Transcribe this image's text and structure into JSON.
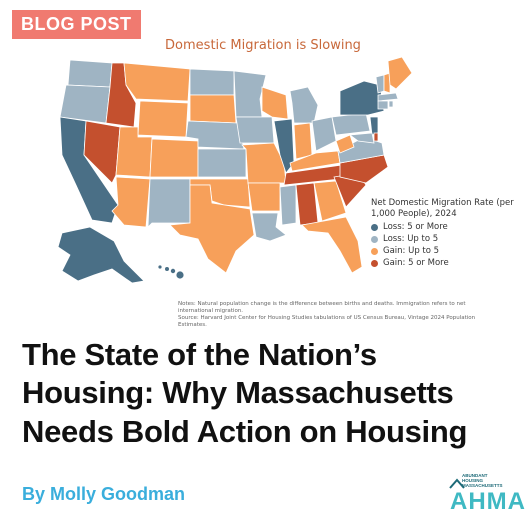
{
  "badge": "BLOG POST",
  "map": {
    "title": "Domestic Migration is Slowing",
    "colors": {
      "loss_5_or_more": "#4a6f86",
      "loss_up_to_5": "#9fb4c3",
      "gain_up_to_5": "#f7a05a",
      "gain_5_or_more": "#c4502e"
    },
    "legend": {
      "title": "Net Domestic Migration Rate (per 1,000 People), 2024",
      "items": [
        {
          "label": "Loss: 5 or More",
          "color": "#4a6f86"
        },
        {
          "label": "Loss: Up to 5",
          "color": "#9fb4c3"
        },
        {
          "label": "Gain: Up to 5",
          "color": "#f7a05a"
        },
        {
          "label": "Gain: 5 or More",
          "color": "#c4502e"
        }
      ]
    },
    "notes": [
      "Notes: Natural population change is the difference between births and deaths. Immigration refers to net international migration.",
      "Source: Harvard Joint Center for Housing Studies tabulations of US Census Bureau, Vintage 2024 Population Estimates."
    ]
  },
  "headline": [
    "The State of the Nation’s",
    "Housing: Why Massachusetts",
    "Needs Bold Action on Housing"
  ],
  "byline": "By Molly Goodman",
  "logo": {
    "small_lines": [
      "ABUNDANT",
      "HOUSING",
      "MASSACHUSETTS"
    ],
    "main": "AHMA"
  }
}
